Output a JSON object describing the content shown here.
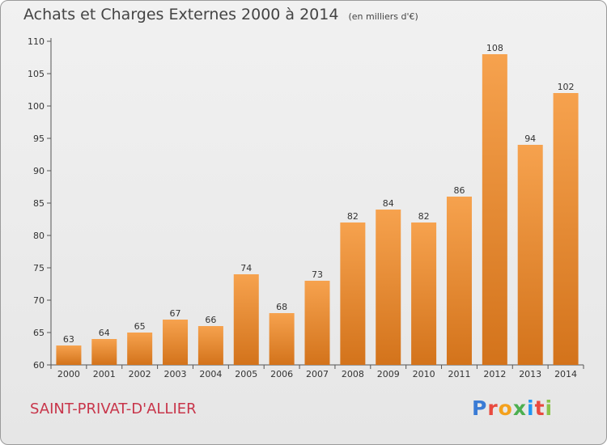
{
  "title": "Achats et Charges Externes 2000 à 2014",
  "subtitle": "(en milliers d'€)",
  "commune": "SAINT-PRIVAT-D'ALLIER",
  "logo": {
    "text": "Proxiti",
    "letter_colors": [
      "#3a7bd5",
      "#e94a3f",
      "#f4a11d",
      "#4caf50",
      "#2196f3",
      "#e94a3f",
      "#8bc34a"
    ]
  },
  "colors": {
    "bar_light": "#f6a24e",
    "bar_dark": "#d3731b",
    "axis": "#555555"
  },
  "chart_data": {
    "type": "bar",
    "categories": [
      "2000",
      "2001",
      "2002",
      "2003",
      "2004",
      "2005",
      "2006",
      "2007",
      "2008",
      "2009",
      "2010",
      "2011",
      "2012",
      "2013",
      "2014"
    ],
    "values": [
      63,
      64,
      65,
      67,
      66,
      74,
      68,
      73,
      82,
      84,
      82,
      86,
      108,
      94,
      102
    ],
    "ylim": [
      60,
      110
    ],
    "yticks": [
      60,
      65,
      70,
      75,
      80,
      85,
      90,
      95,
      100,
      105,
      110
    ],
    "xlabel": "",
    "ylabel": "",
    "grid": false
  }
}
